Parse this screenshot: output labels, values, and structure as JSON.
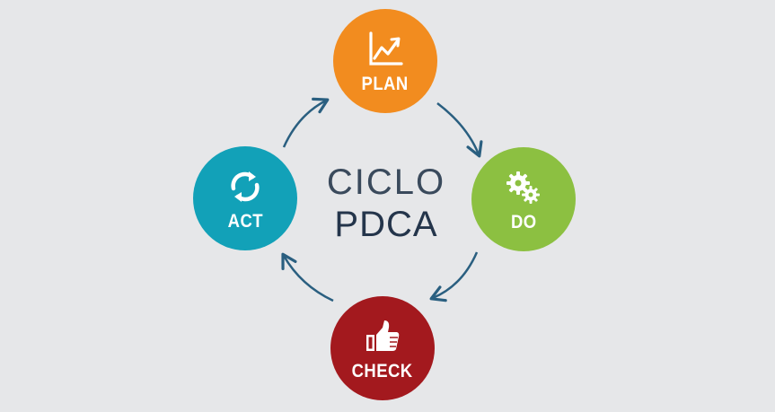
{
  "center": {
    "line1": "CICLO",
    "line2": "PDCA"
  },
  "stages": [
    {
      "id": "plan",
      "label": "PLAN",
      "icon": "chart-up-icon",
      "color": "#f28c1f"
    },
    {
      "id": "do",
      "label": "DO",
      "icon": "gears-icon",
      "color": "#8cc041"
    },
    {
      "id": "check",
      "label": "CHECK",
      "icon": "thumbs-up-icon",
      "color": "#a3191e"
    },
    {
      "id": "act",
      "label": "ACT",
      "icon": "refresh-icon",
      "color": "#12a1b8"
    }
  ],
  "arrow_color": "#2a5f80",
  "background": "#e6e7e9"
}
